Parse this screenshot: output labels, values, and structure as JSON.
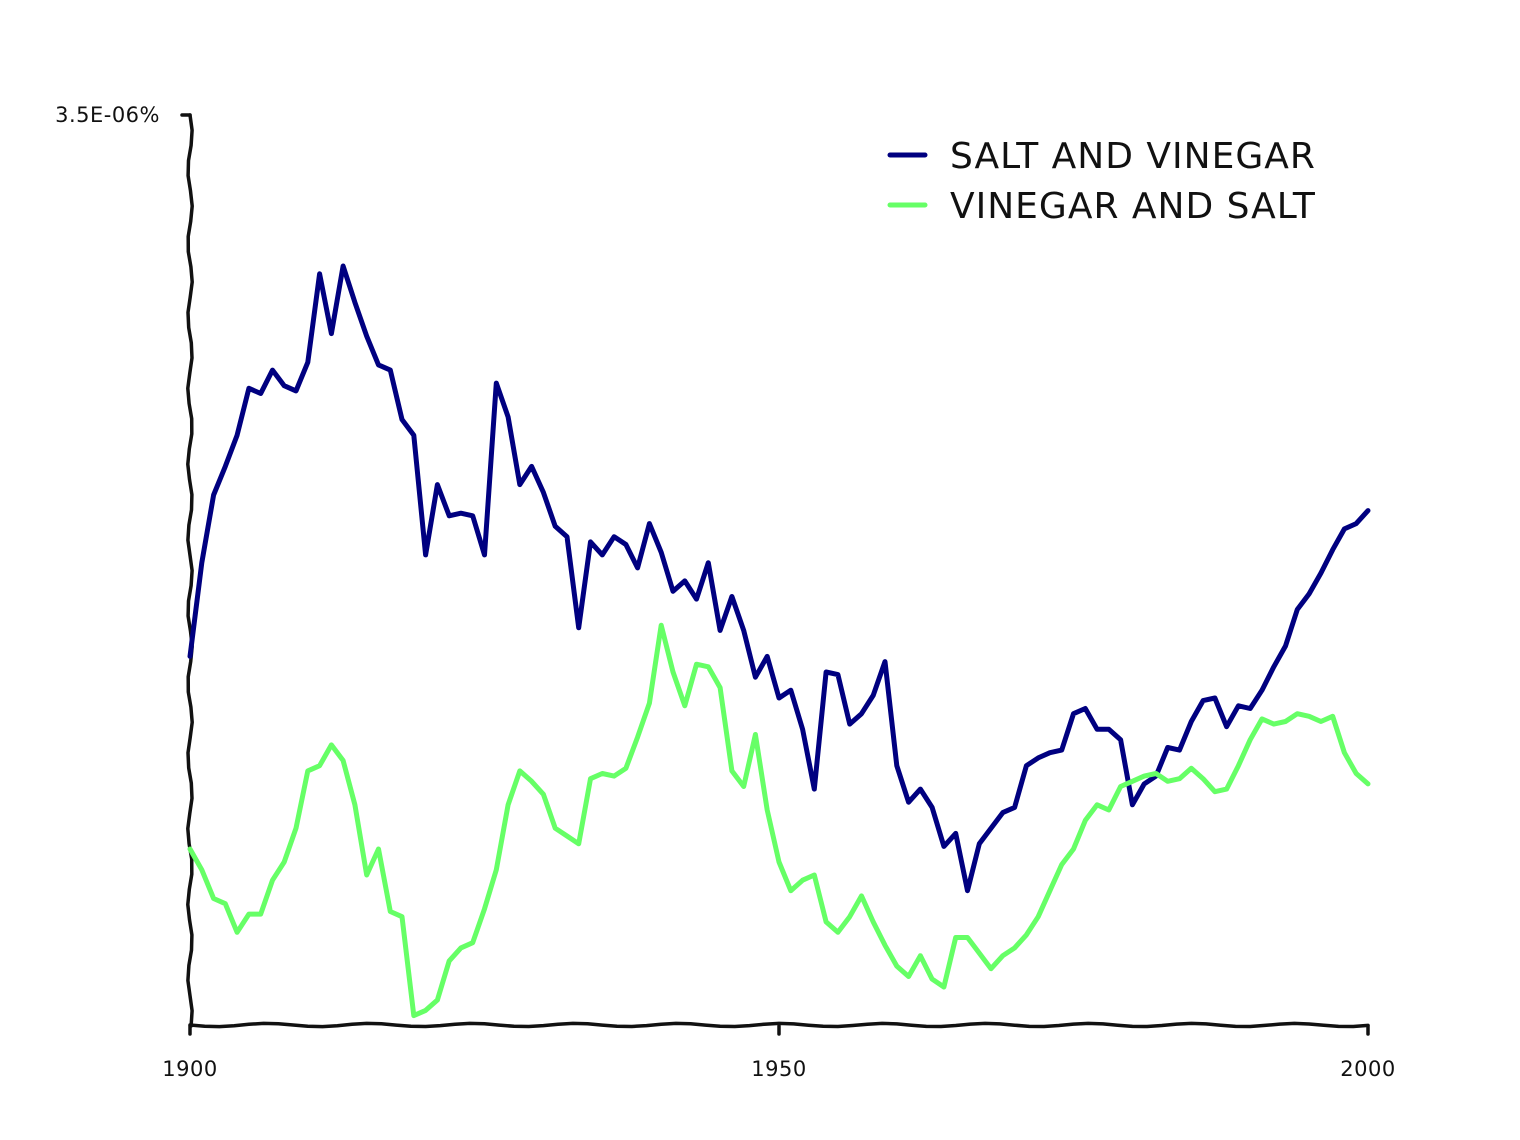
{
  "chart_data": {
    "type": "line",
    "title": "",
    "xlabel": "",
    "ylabel": "",
    "xlim": [
      1900,
      2000
    ],
    "ylim": [
      0,
      3.5e-06
    ],
    "x_ticks": [
      1900,
      1950,
      2000
    ],
    "x_tick_labels": [
      "1900",
      "1950",
      "2000"
    ],
    "y_ticks": [
      3.5e-06
    ],
    "y_tick_labels": [
      "3.5E-06%"
    ],
    "grid": false,
    "legend": {
      "position": "top-right"
    },
    "x": [
      1900,
      1901,
      1902,
      1903,
      1904,
      1905,
      1906,
      1907,
      1908,
      1909,
      1910,
      1911,
      1912,
      1913,
      1914,
      1915,
      1916,
      1917,
      1918,
      1919,
      1920,
      1921,
      1922,
      1923,
      1924,
      1925,
      1926,
      1927,
      1928,
      1929,
      1930,
      1931,
      1932,
      1933,
      1934,
      1935,
      1936,
      1937,
      1938,
      1939,
      1940,
      1941,
      1942,
      1943,
      1944,
      1945,
      1946,
      1947,
      1948,
      1949,
      1950,
      1951,
      1952,
      1953,
      1954,
      1955,
      1956,
      1957,
      1958,
      1959,
      1960,
      1961,
      1962,
      1963,
      1964,
      1965,
      1966,
      1967,
      1968,
      1969,
      1970,
      1971,
      1972,
      1973,
      1974,
      1975,
      1976,
      1977,
      1978,
      1979,
      1980,
      1981,
      1982,
      1983,
      1984,
      1985,
      1986,
      1987,
      1988,
      1989,
      1990,
      1991,
      1992,
      1993,
      1994,
      1995,
      1996,
      1997,
      1998,
      1999,
      2000
    ],
    "series": [
      {
        "name": "SALT AND VINEGAR",
        "color": "#000080",
        "values": [
          1.42e-06,
          1.78e-06,
          2.04e-06,
          2.15e-06,
          2.27e-06,
          2.45e-06,
          2.43e-06,
          2.52e-06,
          2.46e-06,
          2.44e-06,
          2.55e-06,
          2.89e-06,
          2.66e-06,
          2.92e-06,
          2.78e-06,
          2.65e-06,
          2.54e-06,
          2.52e-06,
          2.33e-06,
          2.27e-06,
          1.81e-06,
          2.08e-06,
          1.96e-06,
          1.97e-06,
          1.96e-06,
          1.81e-06,
          2.47e-06,
          2.34e-06,
          2.08e-06,
          2.15e-06,
          2.05e-06,
          1.92e-06,
          1.88e-06,
          1.53e-06,
          1.86e-06,
          1.81e-06,
          1.88e-06,
          1.85e-06,
          1.76e-06,
          1.93e-06,
          1.82e-06,
          1.67e-06,
          1.71e-06,
          1.64e-06,
          1.78e-06,
          1.52e-06,
          1.65e-06,
          1.52e-06,
          1.34e-06,
          1.42e-06,
          1.26e-06,
          1.29e-06,
          1.14e-06,
          9.1e-07,
          1.36e-06,
          1.35e-06,
          1.16e-06,
          1.2e-06,
          1.27e-06,
          1.4e-06,
          1e-06,
          8.6e-07,
          9.1e-07,
          8.4e-07,
          6.9e-07,
          7.4e-07,
          5.2e-07,
          7e-07,
          7.6e-07,
          8.2e-07,
          8.4e-07,
          1e-06,
          1.03e-06,
          1.05e-06,
          1.06e-06,
          1.2e-06,
          1.22e-06,
          1.14e-06,
          1.14e-06,
          1.1e-06,
          8.5e-07,
          9.3e-07,
          9.6e-07,
          1.07e-06,
          1.06e-06,
          1.17e-06,
          1.25e-06,
          1.26e-06,
          1.15e-06,
          1.23e-06,
          1.22e-06,
          1.29e-06,
          1.38e-06,
          1.46e-06,
          1.6e-06,
          1.66e-06,
          1.74e-06,
          1.83e-06,
          1.91e-06,
          1.93e-06,
          1.98e-06
        ]
      },
      {
        "name": "VINEGAR AND SALT",
        "color": "#66ff66",
        "values": [
          6.8e-07,
          6e-07,
          4.9e-07,
          4.7e-07,
          3.6e-07,
          4.3e-07,
          4.3e-07,
          5.6e-07,
          6.3e-07,
          7.6e-07,
          9.8e-07,
          1e-06,
          1.08e-06,
          1.02e-06,
          8.5e-07,
          5.8e-07,
          6.8e-07,
          4.4e-07,
          4.2e-07,
          4e-08,
          6e-08,
          1e-07,
          2.5e-07,
          3e-07,
          3.2e-07,
          4.5e-07,
          6e-07,
          8.5e-07,
          9.8e-07,
          9.4e-07,
          8.9e-07,
          7.6e-07,
          7.3e-07,
          7e-07,
          9.5e-07,
          9.7e-07,
          9.6e-07,
          9.9e-07,
          1.11e-06,
          1.24e-06,
          1.54e-06,
          1.36e-06,
          1.23e-06,
          1.39e-06,
          1.38e-06,
          1.3e-06,
          9.8e-07,
          9.2e-07,
          1.12e-06,
          8.3e-07,
          6.3e-07,
          5.2e-07,
          5.6e-07,
          5.8e-07,
          4e-07,
          3.6e-07,
          4.2e-07,
          5e-07,
          4e-07,
          3.1e-07,
          2.3e-07,
          1.9e-07,
          2.7e-07,
          1.8e-07,
          1.5e-07,
          3.4e-07,
          3.4e-07,
          2.8e-07,
          2.2e-07,
          2.7e-07,
          3e-07,
          3.5e-07,
          4.2e-07,
          5.2e-07,
          6.2e-07,
          6.8e-07,
          7.9e-07,
          8.5e-07,
          8.3e-07,
          9.2e-07,
          9.4e-07,
          9.6e-07,
          9.7e-07,
          9.4e-07,
          9.5e-07,
          9.9e-07,
          9.5e-07,
          9e-07,
          9.1e-07,
          1e-06,
          1.1e-06,
          1.18e-06,
          1.16e-06,
          1.17e-06,
          1.2e-06,
          1.19e-06,
          1.17e-06,
          1.19e-06,
          1.05e-06,
          9.7e-07,
          9.3e-07
        ]
      }
    ]
  }
}
